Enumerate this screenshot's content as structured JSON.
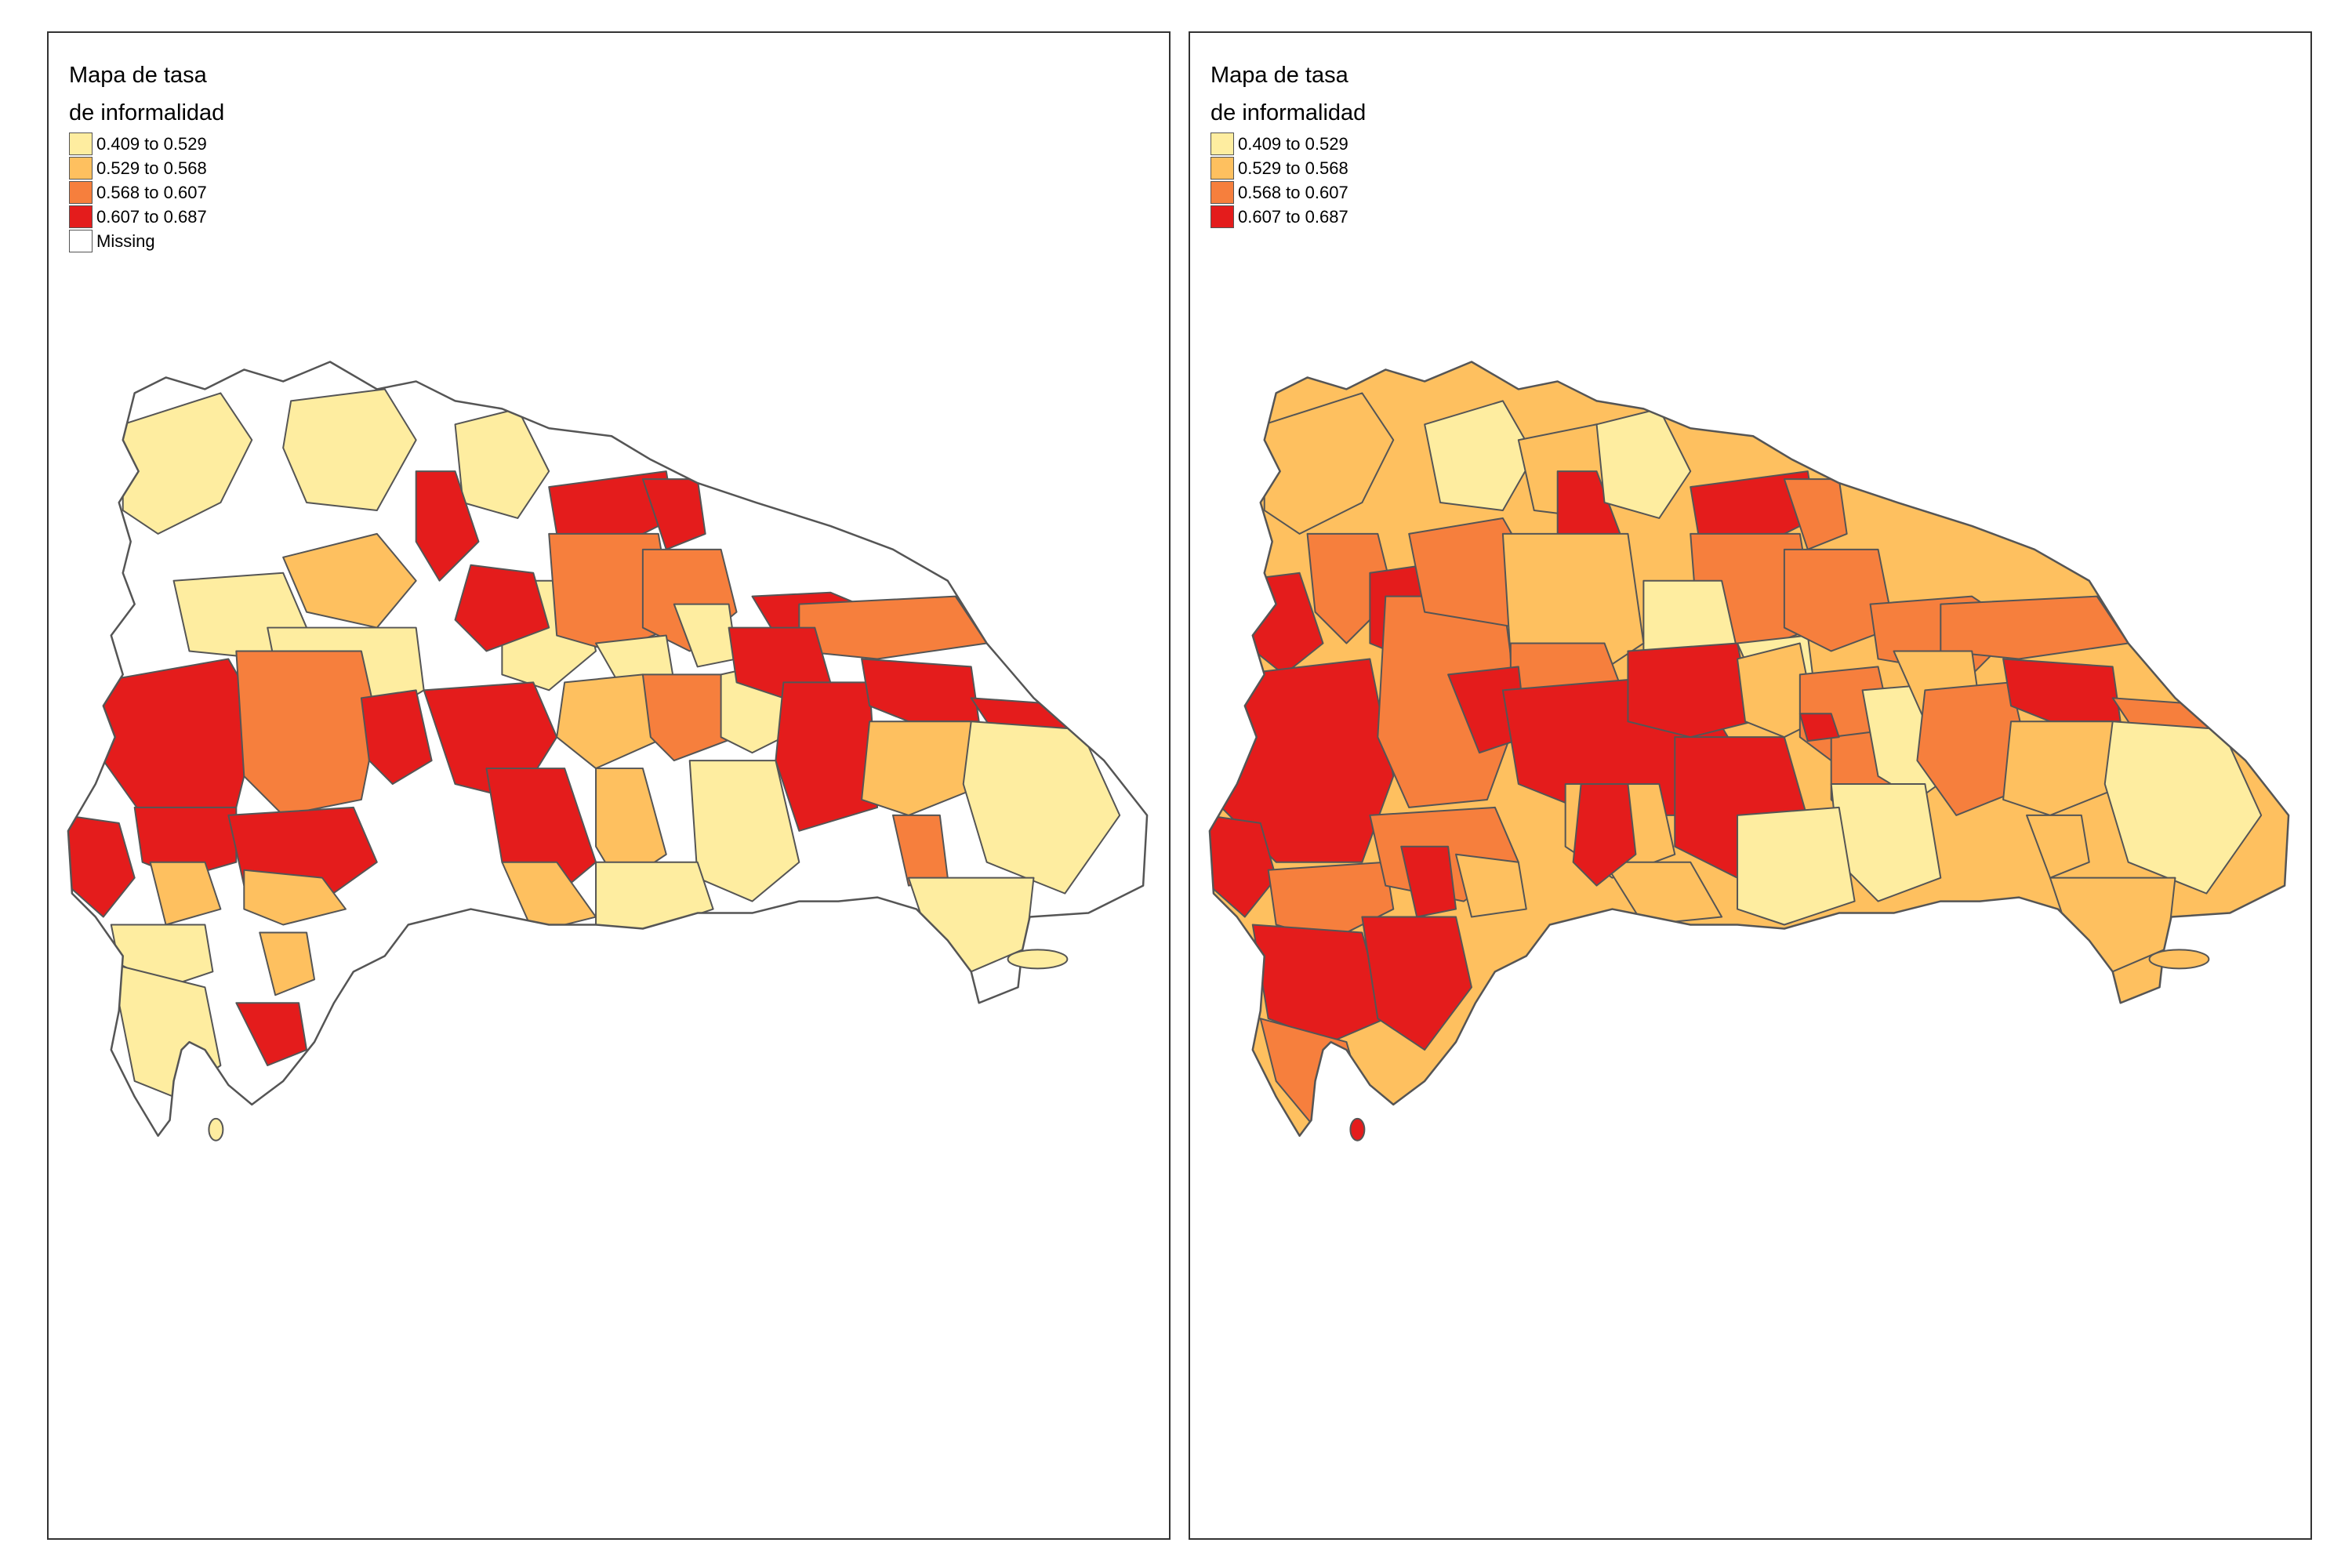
{
  "maps": [
    {
      "id": "left",
      "legend": {
        "title": "Mapa de tasa\nde informalidad",
        "items": [
          {
            "label": "0.409 to 0.529",
            "color": "#FEEDA0"
          },
          {
            "label": "0.529 to 0.568",
            "color": "#FEC05F"
          },
          {
            "label": "0.568 to 0.607",
            "color": "#F67F3D"
          },
          {
            "label": "0.607 to 0.687",
            "color": "#E41C1C"
          },
          {
            "label": "Missing",
            "color": "#FFFFFF"
          }
        ]
      }
    },
    {
      "id": "right",
      "legend": {
        "title": "Mapa de tasa\nde informalidad",
        "items": [
          {
            "label": "0.409 to 0.529",
            "color": "#FEEDA0"
          },
          {
            "label": "0.529 to 0.568",
            "color": "#FEC05F"
          },
          {
            "label": "0.568 to 0.607",
            "color": "#F67F3D"
          },
          {
            "label": "0.607 to 0.687",
            "color": "#E41C1C"
          }
        ]
      }
    }
  ]
}
